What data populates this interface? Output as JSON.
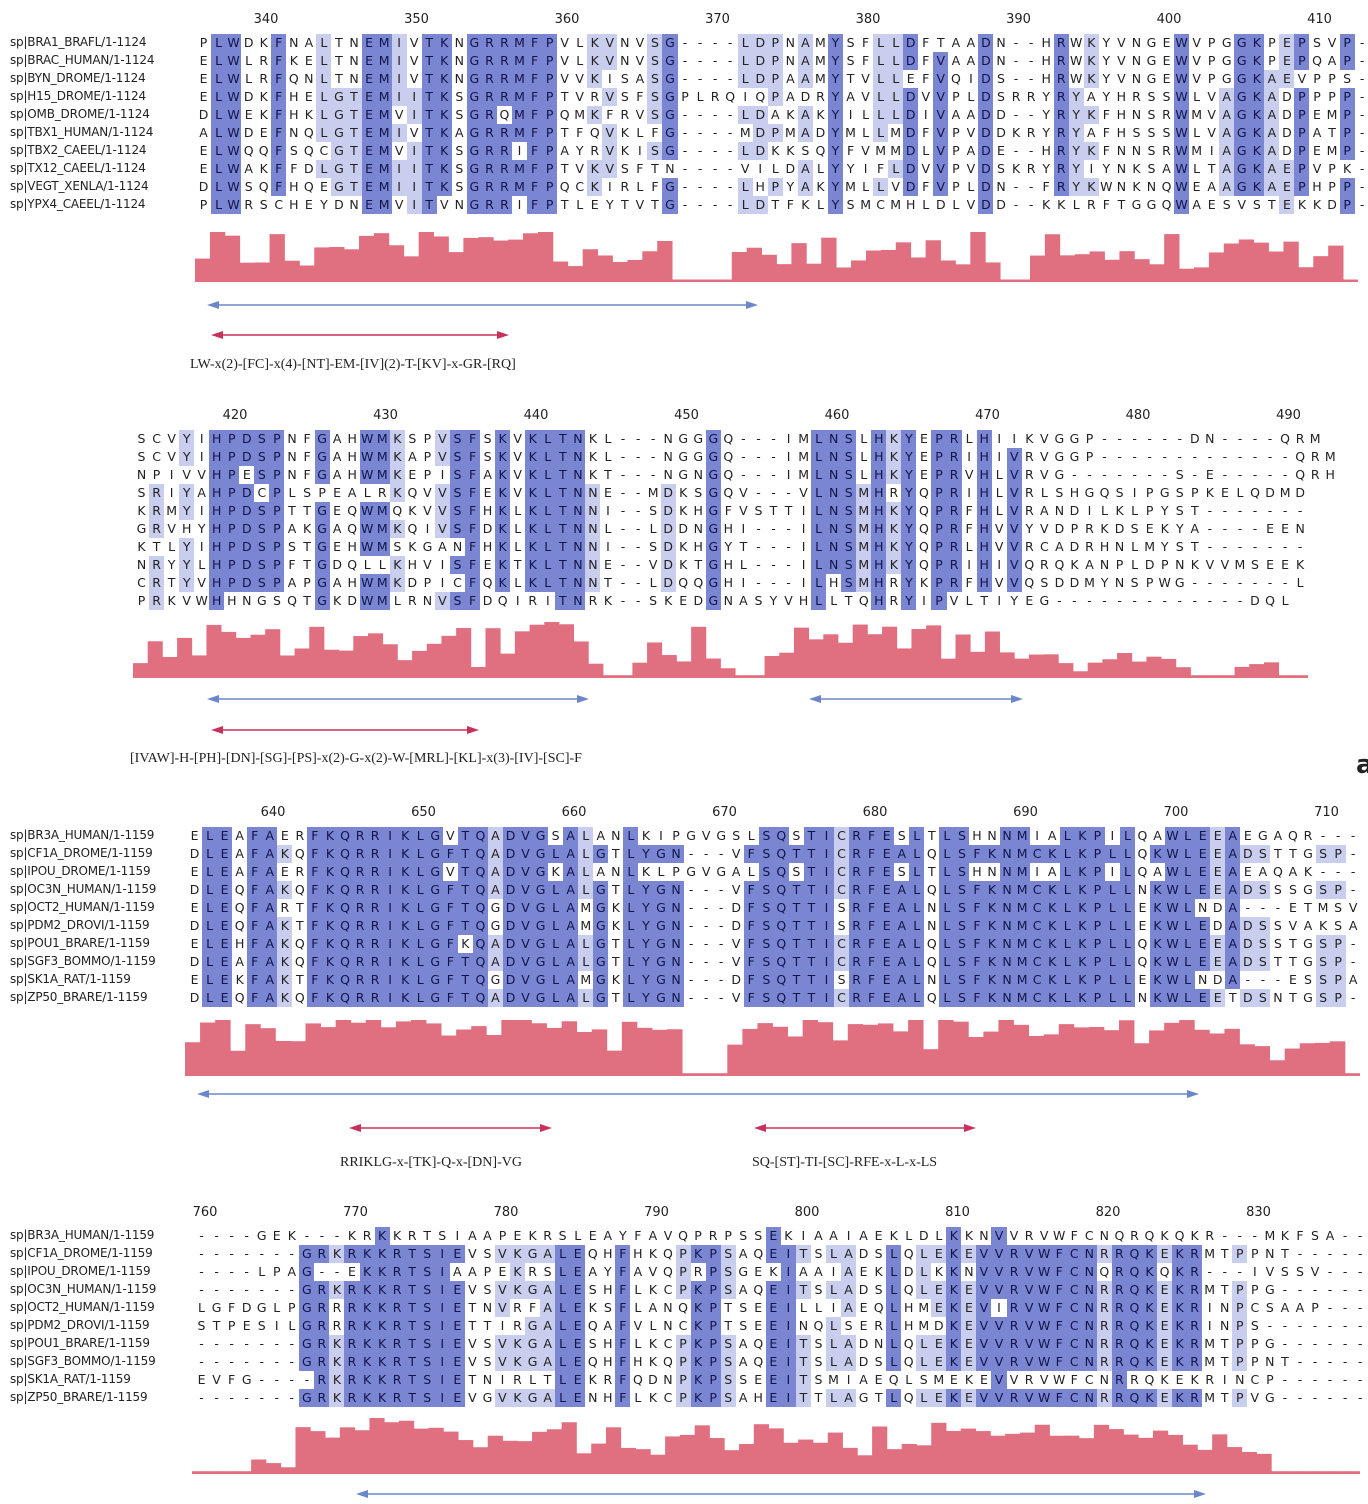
{
  "panel_label": "a",
  "colors": {
    "high": "#7b86d3",
    "medium": "#c9cdee",
    "conservation": "#e07080",
    "domain_arrow": "#6b86c9",
    "motif_arrow": "#c8325a"
  },
  "panels": [
    {
      "top": 12,
      "ruler": [
        "340",
        "350",
        "360",
        "370",
        "380",
        "390",
        "400",
        "410"
      ],
      "names": [
        "sp|BRA1_BRAFL/1-1124",
        "sp|BRAC_HUMAN/1-1124",
        "sp|BYN_DROME/1-1124",
        "sp|H15_DROME/1-1124",
        "sp|OMB_DROME/1-1124",
        "sp|TBX1_HUMAN/1-1124",
        "sp|TBX2_CAEEL/1-1124",
        "sp|TX12_CAEEL/1-1124",
        "sp|VEGT_XENLA/1-1124",
        "sp|YPX4_CAEEL/1-1124"
      ],
      "seqs": [
        "PLWDKFNALTNEMIVTKNGRRMFPVLKVNVSG----LDPNAMYSFLLDFTAADN--HRWKYVNGEWVPGGKPEPSVP-",
        "ELWLRFKELTNEMIVTKNGRRMFPVLKVNVSG----LDPNAMYSFLLDFVAADN--HRWKYVNGEWVPGGKPEPQAP-",
        "ELWLRFQNLTNEMIVTKNGRRMFPVVKISASG----LDPAAMYTVLLEFVQIDS--HRWKYVNGEWVPGGKAEVPPS-",
        "ELWDKFHELGTEMIITKSGRRMFPTVRVSFSGPLRQIQPADRYAVLLDVVPLDSRRYRYAYHRSSWLVAGKADPPPP-",
        "DLWEKFHKLGTEMVITKSGRQMFPQMKFRVSG----LDAKAKYILLLDIVAADD--YRYKFHNSRWMVAGKADPEMP-",
        "ALWDEFNQLGTEMIVTKAGRRMFPTFQVKLFG----MDPMADYMLLMDFVPVDDKRYRYAFHSSSWLVAGKADPATP-",
        "ELWQQFSQCGTEMVITKSGRRIFPAYRVKISG----LDKKSQYFVMMDLVPADE--HRYKFNNSRWMIAGKADPEMP-",
        "ELWAKFFDLGTEMIITKSGRRMFPTVKVSFTN----VILDALYYIFLDVVPVDSKRYRYIYNKSAWLTAGKAEPVPK-",
        "DLWSQFHQEGTEMIITKSGRRMFPQCKIRLFG----LHPYAKYMLLVDFVPLDN--FRYKWNKNQWEAAGKAEPHPP-",
        "PLWRSCHEYDNEMVITVNGRRIFPTLEYTVTG----LDTFKLYSMCMHLDLVDD--KKLRFTGGQWAESVSTEKKDP-"
      ]
    },
    {
      "top": 408,
      "ruler": [
        "420",
        "430",
        "440",
        "450",
        "460",
        "470",
        "480",
        "490"
      ],
      "names": [],
      "seqs": [
        "SCVYIHPDSPNFGAHWMKSPVSFSKVKLTNKL---NGGGQ---IMLNSLHKYEPRLHIIKVGGP------DN----QRM",
        "SCVYIHPDSPNFGAHWMKAPVSFSKVKLTNKL---NGGGQ---IMLNSLHKYEPRIHIVRVGGP-------------QRM",
        "NPIVVHPESPNFGAHWMKEPISFAKVKLTNKT---NGNGQ---IMLNSLHKYEPRVHLVRVG-------S-E-----QRH",
        "SRIYAHPDCPLSPEALRKQVVSFEKVKLTNNE--MDKSGQV---VLNSMHRYQPRIHLVRLSHGQSIPGSPKELQDMD",
        "KRMYIHPDSPTTGEQWMQKVVSFHKLKLTNNI--SDKHGFVSTTILNSMHKYQPRFHLVRANDILKLPYST-------",
        "GRVHYHPDSPAKGAQWMKQIVSFDKLKLTNNL--LDDNGHI---ILNSMHKYQPRFHVVYVDPRKDSEKYA----EEN",
        "KTLYIHPDSPSTGEHWMSKGANFHKLKLTNNI--SDKHGYT---ILNSMHKYQPRLHVVRCADRHNLMYST-------",
        "NRYYLHPDSPFTGDQLLKHVISFEKTKLTNNE--VDKTGHL---ILNSMHKYQPRIHIVQRQKANPLDPNKVVMSEEK",
        "CRTYVHPDSPAPGAHWMKDPICFQKLKLTNNT--LDQQGHI---ILHSMHRYKPRFHVVQSDDMYNSPWG-------L",
        "PRKVWHHNGSQTGKDWMLRNVSFDQIRITNRK--SKEDGNASYVHLLTQHRYIPVLTIYEG-------------DQL"
      ]
    },
    {
      "top": 805,
      "ruler": [
        "640",
        "650",
        "660",
        "670",
        "680",
        "690",
        "700",
        "710"
      ],
      "names": [
        "sp|BR3A_HUMAN/1-1159",
        "sp|CF1A_DROME/1-1159",
        "sp|IPOU_DROME/1-1159",
        "sp|OC3N_HUMAN/1-1159",
        "sp|OCT2_HUMAN/1-1159",
        "sp|PDM2_DROVI/1-1159",
        "sp|POU1_BRARE/1-1159",
        "sp|SGF3_BOMMO/1-1159",
        "sp|SK1A_RAT/1-1159",
        "sp|ZP50_BRARE/1-1159"
      ],
      "seqs": [
        "ELEAFAERFKQRRIKLGVTQADVGSALANLKIPGVGSLSQSTICRFESLTLSHNNMIALKPILQAWLEEAEGAQR---",
        "DLEAFAKQFKQRRIKLGFTQADVGLALGTLYGN---VFSQTTICRFEALQLSFKNMCKLKPLLQKWLEEADSTTGSP-",
        "ELEAFAERFKQRRIKLGVTQADVGKALANLKLPGVGALSQSTICRFESLTLSHNNMIALKPILQAWLEEAEAQAK---",
        "DLEQFAKQFKQRRIKLGFTQADVGLALGTLYGN---VFSQTTICRFEALQLSFKNMCKLKPLLNKWLEEADSSSGSP-",
        "ELEQFARTFKQRRIKLGFTQGDVGLAMGKLYGN---DFSQTTISRFEALNLSFKNMCKLKPLLEKWLNDA---ETMSV",
        "DLEQFAKTFKQRRIKLGFTQGDVGLAMGKLYGN---DFSQTTISRFEALNLSFKNMCKLKPLLEKWLEDADSSVAKSA",
        "ELEHFAKQFKQRRIKLGFKQADVGLALGTLYGN---VFSQTTICRFEALQLSFKNMCKLKPLLQKWLEEADSSTGSP-",
        "DLEAFAKQFKQRRIKLGFTQADVGLALGTLYGN---VFSQTTICRFEALQLSFKNMCKLKPLLQKWLEEADSTTGSP-",
        "ELEKFAKTFKQRRIKLGFTQGDVGLAMGKLYGN---DFSQTTISRFEALNLSFKNMCKLKPLLEKWLNDA---ESSPA",
        "DLEQFAKQFKQRRIKLGFTQADVGLALGTLYGN---VFSQTTICRFEALQLSFKNMCKLKPLLNKWLEETDSNTGSP-"
      ]
    },
    {
      "top": 1205,
      "ruler": [
        "760",
        "770",
        "780",
        "790",
        "800",
        "810",
        "820",
        "830"
      ],
      "names": [
        "sp|BR3A_HUMAN/1-1159",
        "sp|CF1A_DROME/1-1159",
        "sp|IPOU_DROME/1-1159",
        "sp|OC3N_HUMAN/1-1159",
        "sp|OCT2_HUMAN/1-1159",
        "sp|PDM2_DROVI/1-1159",
        "sp|POU1_BRARE/1-1159",
        "sp|SGF3_BOMMO/1-1159",
        "sp|SK1A_RAT/1-1159",
        "sp|ZP50_BRARE/1-1159"
      ],
      "seqs": [
        "----GEK---KRKKRTSIAAPEKRSLEAYFAVQPRPSSEKIAAIAEKLDLKKNVVRVWFCNQRQKQKR---MKFSA---",
        "-------GRKRKKRTSIEVSVKGALEQHFHKQPKPSAQEITSLADSLQLEKEVVRVWFCNRRQKEKRMTPPNT-----",
        "----LPAG--EKKRTSIAAPEKRSLEAYFAVQPRPSGEKIAAIAEKLDLKKNVVRVWFCNQRQKQKR---IVSSV---",
        "-------GRKRKKRTSIEVSVKGALESHFLKCPKPSAQEITSLADSLQLEKEVVRVWFCNRRQKEKRMTPPG------",
        "LGFDGLPGRRRKKRTSIETNVRFALEKSFLANQKPTSEEILLIAEQLHMEKEVIRVWFCNRRQKEKRINPCSAAP---",
        "STPESILGRRRKKRTSIETTIRGALEQAFVLNCKPTSEEINQLSERLHMDKEVVRVWFCNRRQKEKRINPS-------",
        "-------GRKRKKRTSIEVSVKGALESHFLKCPKPSAQEITSLADNLQLEKEVVRVWFCNRRQKEKRMTPPG------",
        "-------GRKRKKRTSIEVSVKGALEQHFHKQPKPSAQEITSLADSLQLEKEVVRVWFCNRRQKEKRMTPPNT-----",
        "EVFG----RKRKKRTSIETNIRLTLEKRFQDNPKPSSEEITSMIAEQLSMEKEVVRVWFCNRRQKEKRINCP------",
        "-------GRKRKKRTSIEVGVKGALENHFLKCPKPSAHEITTLAGTLQLEKEVVRVWFCNRRQKEKRMTPVG------"
      ]
    }
  ],
  "motifs": [
    "LW-x(2)-[FC]-x(4)-[NT]-EM-[IV](2)-T-[KV]-x-GR-[RQ]",
    "[IVAW]-H-[PH]-[DN]-[SG]-[PS]-x(2)-G-x(2)-W-[MRL]-[KL]-x(3)-[IV]-[SC]-F",
    "RRIKLG-x-[TK]-Q-x-[DN]-VG",
    "SQ-[ST]-TI-[SC]-RFE-x-L-x-LS"
  ]
}
